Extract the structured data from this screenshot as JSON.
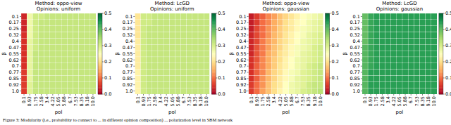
{
  "chart_data": [
    {
      "type": "heatmap",
      "title": "Method: oppo-view",
      "subtitle": "Opinions: uniform",
      "x_label": "pol",
      "y_label": "β",
      "color": "RdYlGn",
      "x": [
        "0.1",
        "0.93",
        "1.75",
        "2.58",
        "3.4",
        "4.22",
        "5.05",
        "5.88",
        "6.7",
        "7.53",
        "8.35",
        "9.18",
        "10.0"
      ],
      "y": [
        "0.1",
        "0.17",
        "0.25",
        "0.32",
        "0.4",
        "0.47",
        "0.55",
        "0.62",
        "0.7",
        "0.77",
        "0.85",
        "0.92",
        "1.0"
      ],
      "cells": [
        [
          0.04,
          0.27,
          0.31,
          0.31,
          0.32,
          0.32,
          0.32,
          0.32,
          0.32,
          0.32,
          0.32,
          0.32,
          0.32
        ],
        [
          0.04,
          0.27,
          0.31,
          0.32,
          0.32,
          0.32,
          0.32,
          0.32,
          0.32,
          0.32,
          0.32,
          0.32,
          0.32
        ],
        [
          0.04,
          0.27,
          0.31,
          0.32,
          0.32,
          0.32,
          0.32,
          0.32,
          0.32,
          0.32,
          0.32,
          0.32,
          0.32
        ],
        [
          0.05,
          0.27,
          0.31,
          0.32,
          0.32,
          0.32,
          0.32,
          0.32,
          0.32,
          0.32,
          0.32,
          0.32,
          0.32
        ],
        [
          0.05,
          0.28,
          0.31,
          0.32,
          0.32,
          0.32,
          0.32,
          0.32,
          0.32,
          0.32,
          0.32,
          0.32,
          0.32
        ],
        [
          0.05,
          0.28,
          0.31,
          0.32,
          0.32,
          0.32,
          0.32,
          0.32,
          0.32,
          0.32,
          0.32,
          0.32,
          0.32
        ],
        [
          0.05,
          0.28,
          0.32,
          0.32,
          0.32,
          0.32,
          0.32,
          0.32,
          0.32,
          0.32,
          0.32,
          0.32,
          0.32
        ],
        [
          0.05,
          0.28,
          0.32,
          0.32,
          0.32,
          0.32,
          0.32,
          0.32,
          0.32,
          0.32,
          0.32,
          0.32,
          0.32
        ],
        [
          0.05,
          0.28,
          0.32,
          0.32,
          0.32,
          0.32,
          0.32,
          0.32,
          0.32,
          0.32,
          0.32,
          0.32,
          0.32
        ],
        [
          0.06,
          0.28,
          0.32,
          0.32,
          0.32,
          0.32,
          0.32,
          0.32,
          0.32,
          0.32,
          0.32,
          0.32,
          0.32
        ],
        [
          0.06,
          0.28,
          0.32,
          0.32,
          0.32,
          0.32,
          0.32,
          0.32,
          0.32,
          0.32,
          0.32,
          0.32,
          0.32
        ],
        [
          0.06,
          0.29,
          0.32,
          0.32,
          0.32,
          0.32,
          0.32,
          0.32,
          0.32,
          0.32,
          0.32,
          0.32,
          0.32
        ],
        [
          0.06,
          0.29,
          0.32,
          0.32,
          0.32,
          0.32,
          0.32,
          0.32,
          0.32,
          0.32,
          0.32,
          0.32,
          0.32
        ]
      ],
      "colorbar": {
        "range": [
          0,
          0.5
        ],
        "ticks": [
          {
            "value": 0,
            "label": "0.0"
          },
          0.1,
          0.2,
          0.3,
          0.4,
          0.5
        ]
      }
    },
    {
      "type": "heatmap",
      "title": "Method: LcGD",
      "subtitle": "Opinions: uniform",
      "x_label": "pol",
      "y_label": "β",
      "color": "RdYlGn",
      "x": [
        "0.1",
        "0.93",
        "1.75",
        "2.58",
        "3.4",
        "4.22",
        "5.05",
        "5.88",
        "6.7",
        "7.53",
        "8.35",
        "9.18",
        "10.0"
      ],
      "y": [
        "0.1",
        "0.17",
        "0.25",
        "0.32",
        "0.4",
        "0.47",
        "0.55",
        "0.62",
        "0.7",
        "0.77",
        "0.85",
        "0.92",
        "1.0"
      ],
      "cells": [
        [
          0.21,
          0.31,
          0.31,
          0.32,
          0.32,
          0.32,
          0.32,
          0.32,
          0.32,
          0.32,
          0.32,
          0.32,
          0.32
        ],
        [
          0.21,
          0.31,
          0.31,
          0.32,
          0.32,
          0.32,
          0.32,
          0.32,
          0.32,
          0.32,
          0.32,
          0.32,
          0.32
        ],
        [
          0.21,
          0.31,
          0.32,
          0.32,
          0.32,
          0.32,
          0.32,
          0.32,
          0.32,
          0.32,
          0.32,
          0.32,
          0.32
        ],
        [
          0.21,
          0.31,
          0.32,
          0.32,
          0.32,
          0.32,
          0.32,
          0.32,
          0.32,
          0.32,
          0.32,
          0.32,
          0.32
        ],
        [
          0.22,
          0.31,
          0.32,
          0.32,
          0.32,
          0.32,
          0.32,
          0.32,
          0.32,
          0.32,
          0.32,
          0.32,
          0.32
        ],
        [
          0.22,
          0.31,
          0.32,
          0.32,
          0.32,
          0.32,
          0.32,
          0.32,
          0.32,
          0.32,
          0.32,
          0.32,
          0.32
        ],
        [
          0.22,
          0.31,
          0.32,
          0.32,
          0.32,
          0.32,
          0.32,
          0.32,
          0.32,
          0.32,
          0.32,
          0.32,
          0.32
        ],
        [
          0.22,
          0.31,
          0.32,
          0.32,
          0.32,
          0.32,
          0.32,
          0.32,
          0.32,
          0.32,
          0.32,
          0.32,
          0.32
        ],
        [
          0.22,
          0.31,
          0.32,
          0.32,
          0.32,
          0.32,
          0.32,
          0.32,
          0.32,
          0.32,
          0.32,
          0.32,
          0.32
        ],
        [
          0.23,
          0.31,
          0.32,
          0.32,
          0.32,
          0.32,
          0.32,
          0.32,
          0.32,
          0.32,
          0.32,
          0.32,
          0.32
        ],
        [
          0.23,
          0.31,
          0.32,
          0.32,
          0.32,
          0.32,
          0.32,
          0.32,
          0.32,
          0.32,
          0.32,
          0.32,
          0.32
        ],
        [
          0.23,
          0.31,
          0.32,
          0.32,
          0.32,
          0.32,
          0.32,
          0.32,
          0.32,
          0.32,
          0.32,
          0.32,
          0.32
        ],
        [
          0.23,
          0.31,
          0.32,
          0.32,
          0.32,
          0.32,
          0.32,
          0.32,
          0.32,
          0.32,
          0.32,
          0.32,
          0.32
        ]
      ],
      "colorbar": {
        "range": [
          0,
          0.5
        ],
        "ticks": [
          {
            "value": 0,
            "label": "0.0"
          },
          0.1,
          0.2,
          0.3,
          0.4,
          0.5
        ]
      }
    },
    {
      "type": "heatmap",
      "title": "Method: oppo-view",
      "subtitle": "Opinions: gaussian",
      "x_label": "pol",
      "y_label": "β",
      "color": "RdYlGn",
      "x": [
        "0.1",
        "0.93",
        "1.75",
        "2.58",
        "3.4",
        "4.22",
        "5.05",
        "5.88",
        "6.7",
        "7.53",
        "8.35",
        "9.18",
        "10.0"
      ],
      "y": [
        "0.1",
        "0.17",
        "0.25",
        "0.32",
        "0.4",
        "0.47",
        "0.55",
        "0.62",
        "0.7",
        "0.77",
        "0.85",
        "0.92",
        "1.0"
      ],
      "cells": [
        [
          0.03,
          0.06,
          0.09,
          0.12,
          0.14,
          0.17,
          0.19,
          0.21,
          0.23,
          0.25,
          0.26,
          0.27,
          0.28
        ],
        [
          0.03,
          0.06,
          0.1,
          0.12,
          0.15,
          0.17,
          0.2,
          0.22,
          0.24,
          0.25,
          0.27,
          0.28,
          0.29
        ],
        [
          0.03,
          0.07,
          0.1,
          0.13,
          0.15,
          0.18,
          0.2,
          0.22,
          0.24,
          0.26,
          0.27,
          0.28,
          0.29
        ],
        [
          0.04,
          0.07,
          0.1,
          0.13,
          0.16,
          0.18,
          0.21,
          0.23,
          0.25,
          0.26,
          0.28,
          0.29,
          0.3
        ],
        [
          0.04,
          0.07,
          0.11,
          0.14,
          0.16,
          0.19,
          0.21,
          0.23,
          0.25,
          0.27,
          0.28,
          0.29,
          0.3
        ],
        [
          0.04,
          0.08,
          0.11,
          0.14,
          0.17,
          0.19,
          0.22,
          0.24,
          0.26,
          0.27,
          0.28,
          0.3,
          0.31
        ],
        [
          0.04,
          0.08,
          0.11,
          0.15,
          0.17,
          0.2,
          0.22,
          0.24,
          0.26,
          0.28,
          0.29,
          0.3,
          0.31
        ],
        [
          0.05,
          0.08,
          0.12,
          0.15,
          0.18,
          0.2,
          0.23,
          0.25,
          0.27,
          0.28,
          0.29,
          0.3,
          0.31
        ],
        [
          0.05,
          0.09,
          0.12,
          0.15,
          0.18,
          0.21,
          0.23,
          0.25,
          0.27,
          0.28,
          0.3,
          0.31,
          0.32
        ],
        [
          0.05,
          0.09,
          0.12,
          0.16,
          0.19,
          0.21,
          0.24,
          0.26,
          0.27,
          0.29,
          0.3,
          0.31,
          0.32
        ],
        [
          0.05,
          0.09,
          0.13,
          0.16,
          0.19,
          0.22,
          0.24,
          0.26,
          0.28,
          0.29,
          0.3,
          0.31,
          0.32
        ],
        [
          0.06,
          0.1,
          0.13,
          0.17,
          0.2,
          0.22,
          0.25,
          0.27,
          0.28,
          0.29,
          0.31,
          0.32,
          0.32
        ],
        [
          0.06,
          0.1,
          0.14,
          0.17,
          0.2,
          0.23,
          0.25,
          0.27,
          0.28,
          0.3,
          0.31,
          0.32,
          0.33
        ]
      ],
      "colorbar": {
        "range": [
          0,
          0.5
        ],
        "ticks": [
          {
            "value": 0,
            "label": "0.0"
          },
          0.1,
          0.2,
          0.3,
          0.4,
          0.5
        ]
      }
    },
    {
      "type": "heatmap",
      "title": "Method: LcGD",
      "subtitle": "Opinions: gaussian",
      "x_label": "pol",
      "y_label": "β",
      "color": "RdYlGn",
      "x": [
        "0.1",
        "0.93",
        "1.75",
        "2.58",
        "3.4",
        "4.22",
        "5.05",
        "5.88",
        "6.7",
        "7.53",
        "8.35",
        "9.18",
        "10.0"
      ],
      "y": [
        "0.1",
        "0.17",
        "0.25",
        "0.32",
        "0.4",
        "0.47",
        "0.55",
        "0.62",
        "0.7",
        "0.77",
        "0.85",
        "0.92",
        "1.0"
      ],
      "cells": [
        [
          0.4,
          0.43,
          0.44,
          0.44,
          0.44,
          0.44,
          0.44,
          0.44,
          0.44,
          0.44,
          0.44,
          0.44,
          0.44
        ],
        [
          0.4,
          0.43,
          0.44,
          0.44,
          0.44,
          0.44,
          0.44,
          0.44,
          0.44,
          0.44,
          0.44,
          0.44,
          0.44
        ],
        [
          0.4,
          0.43,
          0.44,
          0.44,
          0.44,
          0.44,
          0.44,
          0.44,
          0.44,
          0.44,
          0.44,
          0.44,
          0.44
        ],
        [
          0.4,
          0.43,
          0.44,
          0.44,
          0.44,
          0.44,
          0.44,
          0.44,
          0.44,
          0.44,
          0.44,
          0.44,
          0.44
        ],
        [
          0.4,
          0.43,
          0.44,
          0.44,
          0.44,
          0.44,
          0.44,
          0.44,
          0.44,
          0.44,
          0.44,
          0.44,
          0.44
        ],
        [
          0.41,
          0.43,
          0.44,
          0.44,
          0.44,
          0.44,
          0.44,
          0.44,
          0.44,
          0.44,
          0.44,
          0.44,
          0.44
        ],
        [
          0.41,
          0.43,
          0.44,
          0.44,
          0.44,
          0.44,
          0.44,
          0.44,
          0.44,
          0.44,
          0.44,
          0.44,
          0.44
        ],
        [
          0.41,
          0.43,
          0.44,
          0.44,
          0.44,
          0.44,
          0.44,
          0.44,
          0.44,
          0.44,
          0.44,
          0.44,
          0.44
        ],
        [
          0.41,
          0.43,
          0.44,
          0.44,
          0.44,
          0.44,
          0.44,
          0.44,
          0.44,
          0.44,
          0.44,
          0.44,
          0.44
        ],
        [
          0.41,
          0.44,
          0.44,
          0.44,
          0.44,
          0.44,
          0.44,
          0.44,
          0.44,
          0.44,
          0.44,
          0.44,
          0.44
        ],
        [
          0.41,
          0.44,
          0.44,
          0.44,
          0.44,
          0.44,
          0.44,
          0.44,
          0.44,
          0.44,
          0.44,
          0.44,
          0.44
        ],
        [
          0.41,
          0.44,
          0.44,
          0.44,
          0.44,
          0.44,
          0.44,
          0.44,
          0.44,
          0.44,
          0.44,
          0.44,
          0.44
        ],
        [
          0.41,
          0.44,
          0.44,
          0.44,
          0.44,
          0.44,
          0.44,
          0.44,
          0.44,
          0.44,
          0.44,
          0.44,
          0.44
        ]
      ],
      "colorbar": {
        "range": [
          0,
          0.5
        ],
        "ticks": [
          {
            "value": 0,
            "label": "0.0"
          },
          0.1,
          0.2,
          0.3,
          0.4,
          0.5
        ]
      }
    }
  ],
  "caption": "Figure 3: Modularity (i.e., probability to connect to ... in different opinion composition) ... polarization level in SBM network"
}
